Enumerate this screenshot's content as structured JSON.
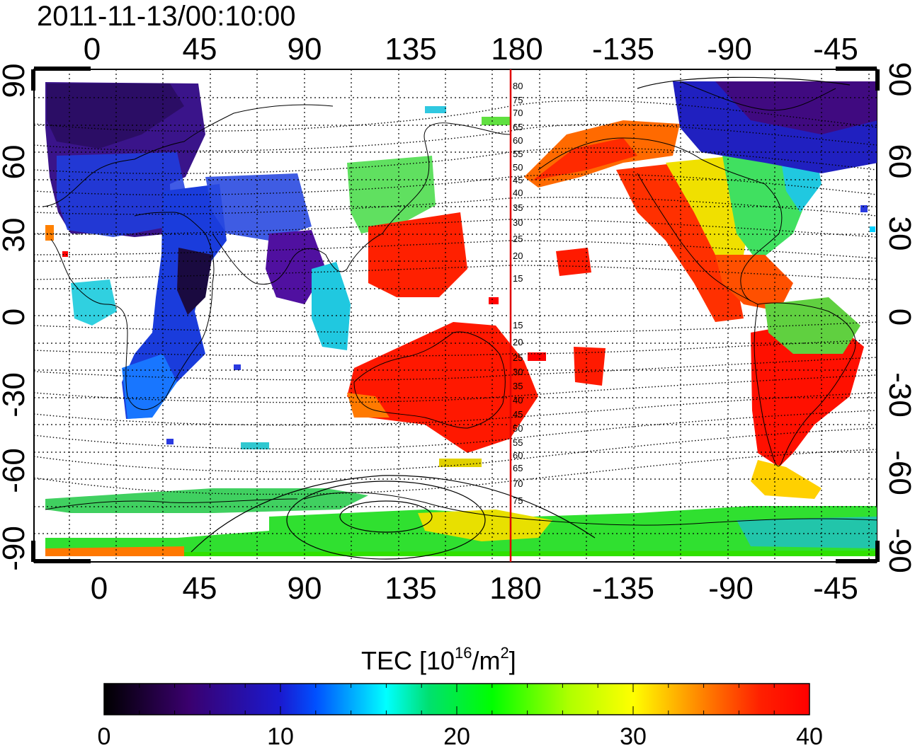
{
  "title": "2011-11-13/00:10:00",
  "map": {
    "lon_labels_top": [
      "0",
      "45",
      "90",
      "135",
      "180",
      "-135",
      "-90",
      "-45"
    ],
    "lon_labels_bottom": [
      "0",
      "45",
      "90",
      "135",
      "180",
      "-135",
      "-90",
      "-45"
    ],
    "lat_labels_left": [
      "90",
      "60",
      "30",
      "0",
      "-30",
      "-60",
      "-90"
    ],
    "lat_labels_right": [
      "90",
      "60",
      "30",
      "0",
      "-30",
      "-60",
      "-90"
    ],
    "lon_range": [
      -20,
      335
    ],
    "lat_range": [
      -90,
      90
    ],
    "marker_longitude": 178,
    "marker_color": "#e00000",
    "mlat_labels_north": [
      "80",
      "75",
      "70",
      "65",
      "60",
      "55",
      "50",
      "45",
      "40",
      "35",
      "30",
      "25",
      "20",
      "15"
    ],
    "mlat_labels_south": [
      "15",
      "20",
      "25",
      "30",
      "35",
      "40",
      "45",
      "50",
      "55",
      "60",
      "65",
      "70",
      "75"
    ]
  },
  "colorbar": {
    "label_main": "TEC  [10",
    "label_exp1": "16",
    "label_mid": "/m",
    "label_exp2": "2",
    "label_end": "]",
    "tick_labels": [
      "0",
      "10",
      "20",
      "30",
      "40"
    ],
    "min": 0,
    "max": 40,
    "colors": [
      "#000000",
      "#3a006e",
      "#1a1ad0",
      "#0050ff",
      "#00ffff",
      "#00e070",
      "#00ff00",
      "#b0ff00",
      "#ffff00",
      "#ff8000",
      "#ff2000",
      "#ff0000"
    ]
  }
}
